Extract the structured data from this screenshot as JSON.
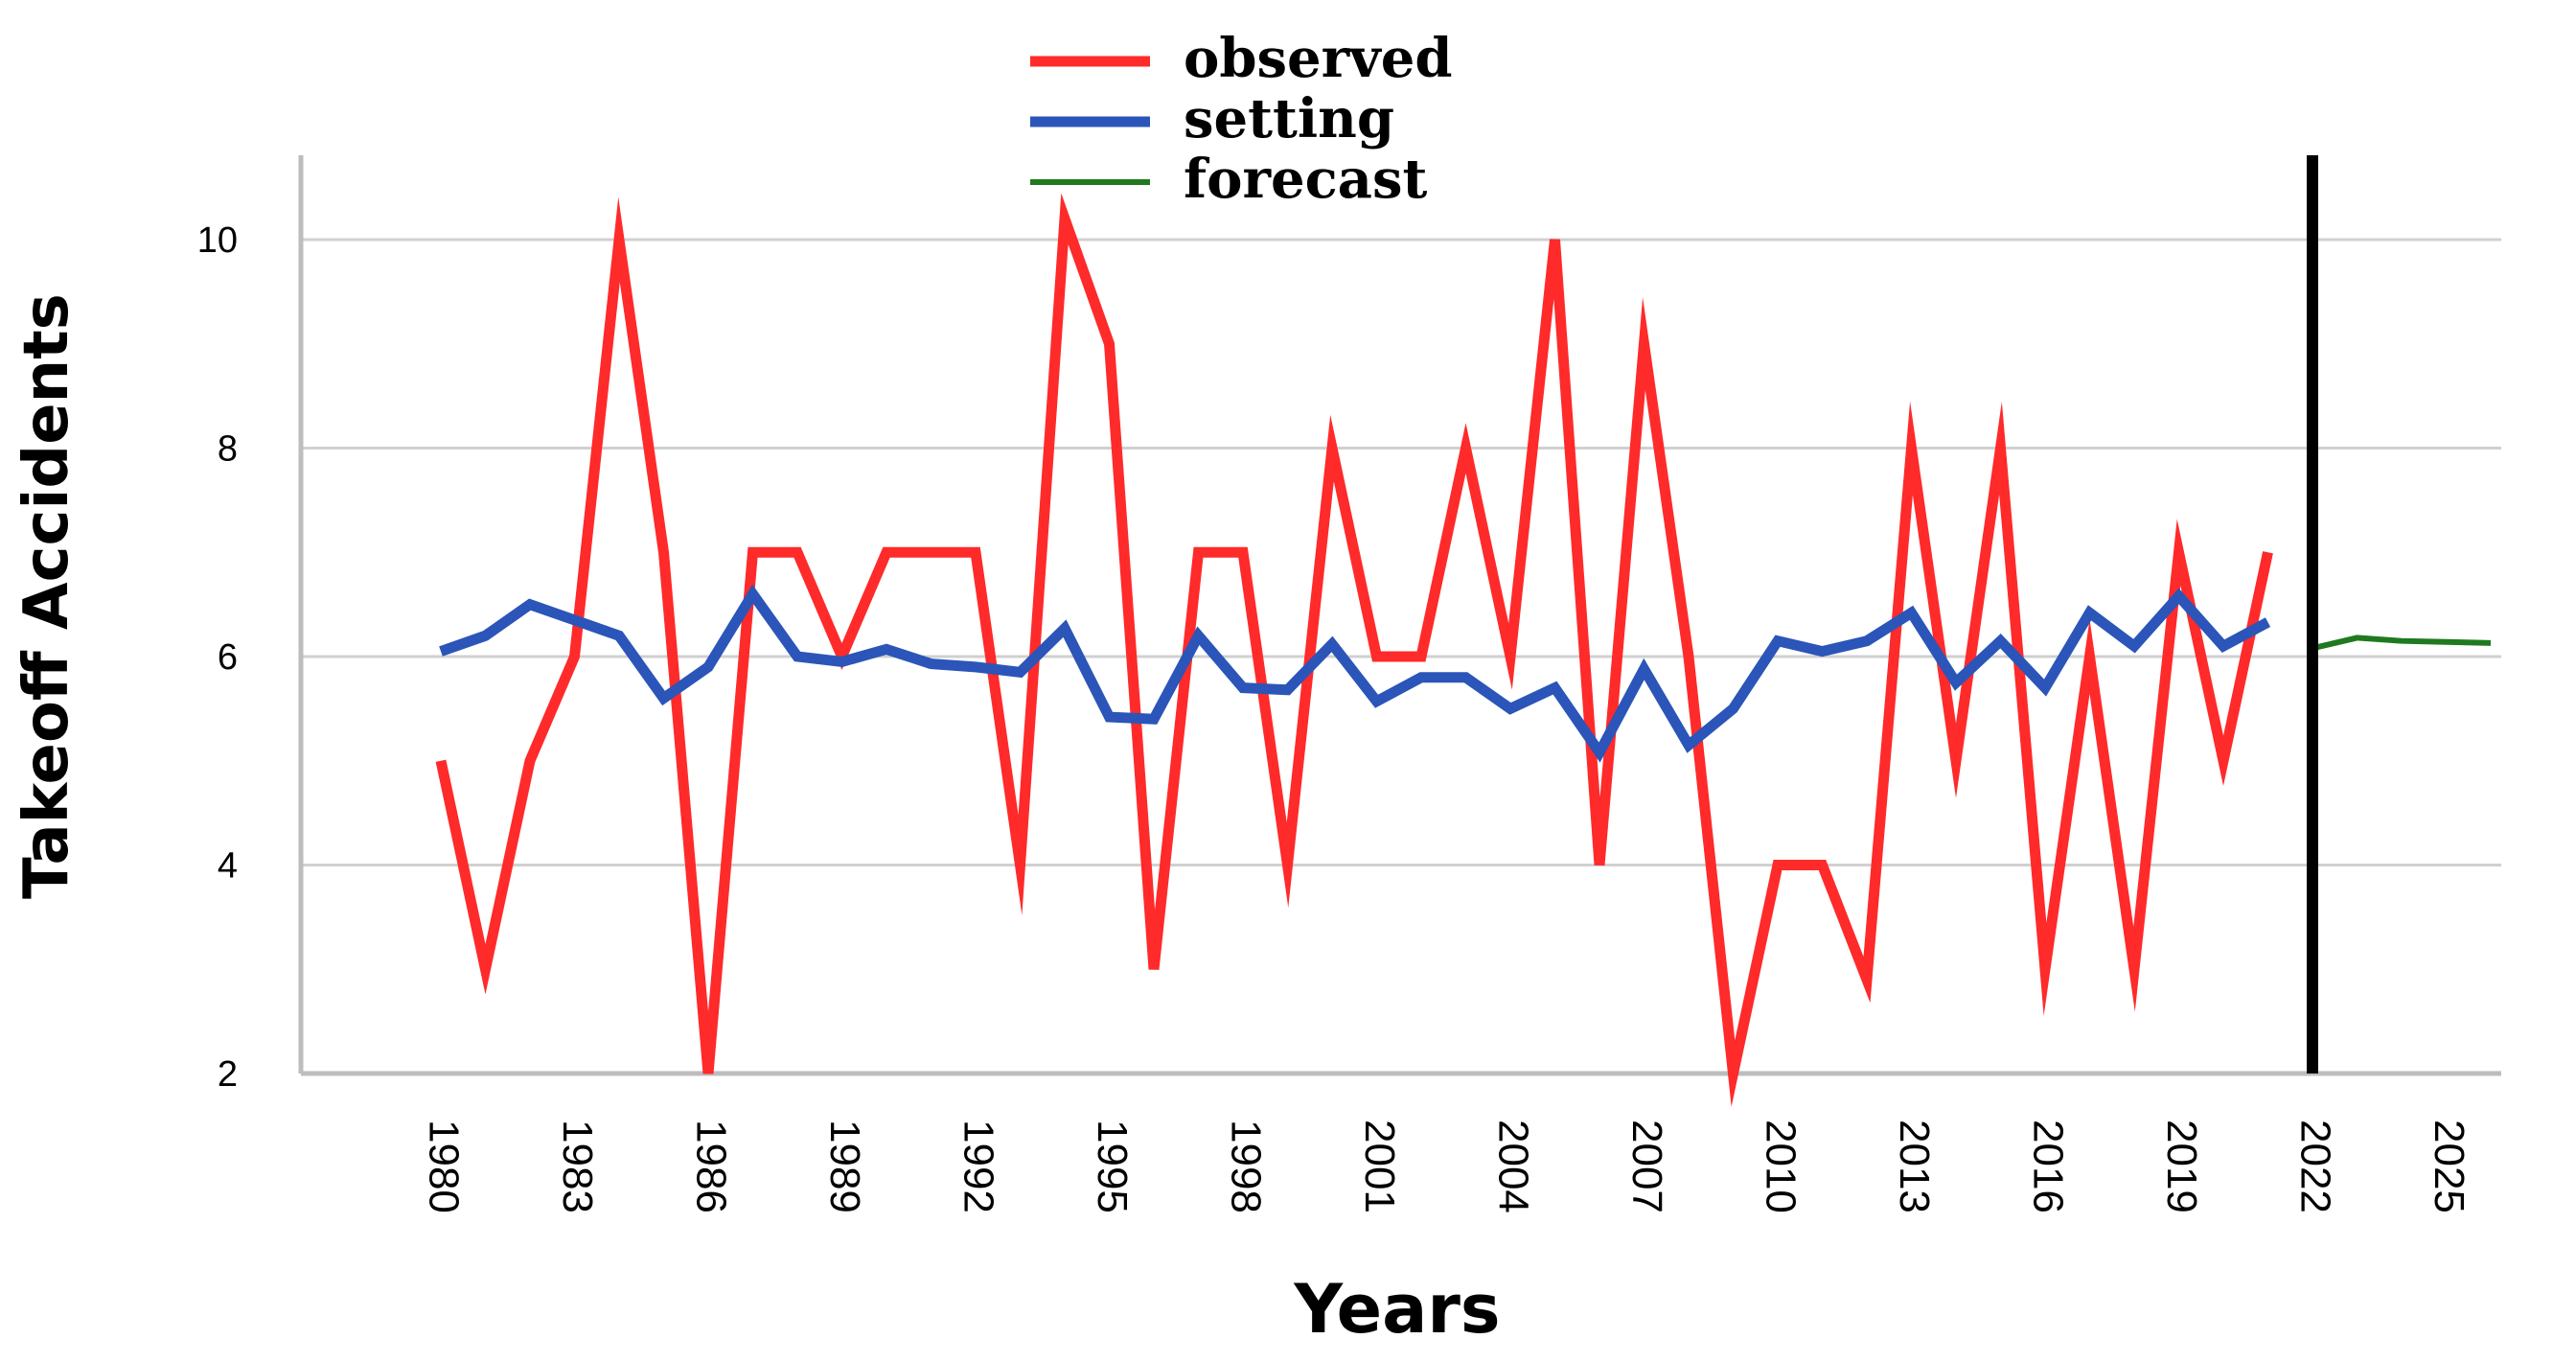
{
  "chart_data": {
    "type": "line",
    "title": "",
    "xlabel": "Years",
    "ylabel": "Takeoff Accidents",
    "xlim": [
      1980,
      2026
    ],
    "ylim": [
      2,
      11
    ],
    "x_ticks": [
      1980,
      1983,
      1986,
      1989,
      1992,
      1995,
      1998,
      2001,
      2004,
      2007,
      2010,
      2013,
      2016,
      2019,
      2022,
      2025
    ],
    "y_ticks": [
      2,
      4,
      6,
      8,
      10
    ],
    "grid": "horizontal",
    "legend_position": "top-center",
    "divider_year": 2022,
    "series": [
      {
        "name": "observed",
        "color": "#ff2a2a",
        "x": [
          1980,
          1981,
          1982,
          1983,
          1984,
          1985,
          1986,
          1987,
          1988,
          1989,
          1990,
          1991,
          1992,
          1993,
          1994,
          1995,
          1996,
          1997,
          1998,
          1999,
          2000,
          2001,
          2002,
          2003,
          2004,
          2005,
          2006,
          2007,
          2008,
          2009,
          2010,
          2011,
          2012,
          2013,
          2014,
          2015,
          2016,
          2017,
          2018,
          2019,
          2020,
          2021
        ],
        "values": [
          5,
          3,
          5,
          6,
          10,
          7,
          2,
          7,
          7,
          6,
          7,
          7,
          7,
          4,
          10.2,
          9,
          3,
          7,
          7,
          4,
          8,
          6,
          6,
          8,
          6,
          10,
          4,
          9,
          6,
          2,
          4,
          4,
          2.9,
          8,
          5,
          8,
          3,
          6,
          3,
          7,
          5,
          7
        ]
      },
      {
        "name": "setting",
        "color": "#2b55b8",
        "x": [
          1980,
          1981,
          1982,
          1983,
          1984,
          1985,
          1986,
          1987,
          1988,
          1989,
          1990,
          1991,
          1992,
          1993,
          1994,
          1995,
          1996,
          1997,
          1998,
          1999,
          2000,
          2001,
          2002,
          2003,
          2004,
          2005,
          2006,
          2007,
          2008,
          2009,
          2010,
          2011,
          2012,
          2013,
          2014,
          2015,
          2016,
          2017,
          2018,
          2019,
          2020,
          2021
        ],
        "values": [
          6.05,
          6.2,
          6.5,
          6.35,
          6.2,
          5.6,
          5.9,
          6.6,
          6.0,
          5.95,
          6.07,
          5.93,
          5.9,
          5.85,
          6.27,
          5.42,
          5.4,
          6.2,
          5.7,
          5.68,
          6.12,
          5.57,
          5.8,
          5.8,
          5.5,
          5.7,
          5.08,
          5.88,
          5.15,
          5.5,
          6.15,
          6.05,
          6.15,
          6.42,
          5.75,
          6.15,
          5.7,
          6.42,
          6.1,
          6.58,
          6.1,
          6.33
        ]
      },
      {
        "name": "forecast",
        "color": "#1f7a1f",
        "x": [
          2022,
          2023,
          2024,
          2025,
          2026
        ],
        "values": [
          6.08,
          6.18,
          6.15,
          6.14,
          6.13
        ]
      }
    ]
  }
}
